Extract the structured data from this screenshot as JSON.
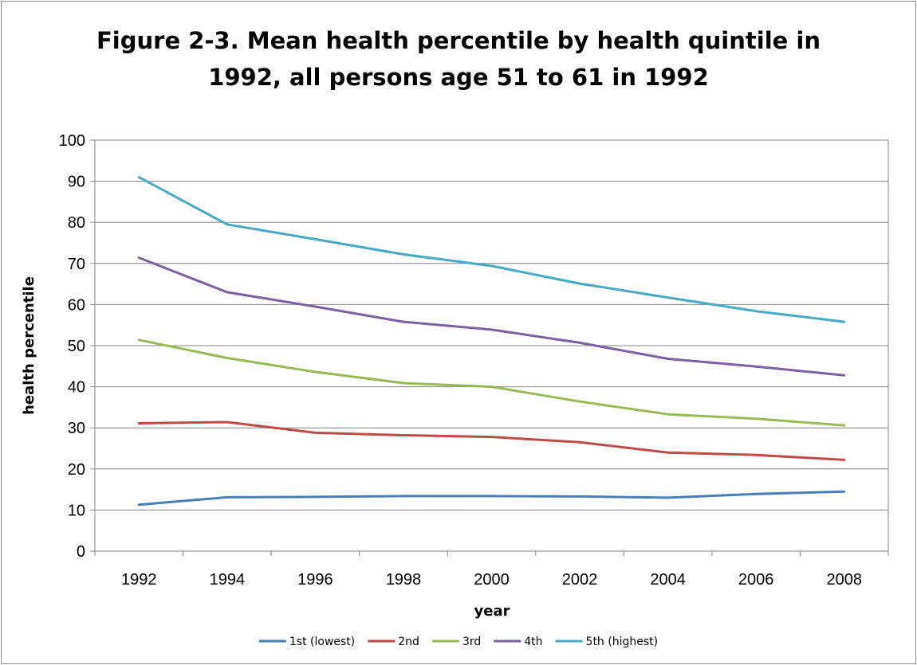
{
  "chart_data": {
    "type": "line",
    "title_line1": "Figure 2-3.  Mean health percentile by health quintile in",
    "title_line2": "1992, all persons age 51 to 61 in 1992",
    "xlabel": "year",
    "ylabel": "health percentile",
    "ylim": [
      0,
      100
    ],
    "yticks": [
      "0",
      "10",
      "20",
      "30",
      "40",
      "50",
      "60",
      "70",
      "80",
      "90",
      "100"
    ],
    "categories": [
      "1992",
      "1994",
      "1996",
      "1998",
      "2000",
      "2002",
      "2004",
      "2006",
      "2008"
    ],
    "grid": true,
    "legend_position": "bottom",
    "series": [
      {
        "name": "1st (lowest)",
        "color": "#4a7ebb",
        "values": [
          11.3,
          13.1,
          13.2,
          13.4,
          13.4,
          13.3,
          13.0,
          13.9,
          14.5
        ]
      },
      {
        "name": "2nd",
        "color": "#be4b48",
        "values": [
          31.1,
          31.4,
          28.8,
          28.2,
          27.8,
          26.5,
          24.0,
          23.4,
          22.2
        ]
      },
      {
        "name": "3rd",
        "color": "#98b954",
        "values": [
          51.4,
          47.0,
          43.6,
          40.9,
          40.0,
          36.4,
          33.3,
          32.2,
          30.6
        ]
      },
      {
        "name": "4th",
        "color": "#7d60a0",
        "values": [
          71.4,
          63.0,
          59.5,
          55.8,
          53.9,
          50.7,
          46.8,
          44.9,
          42.8
        ]
      },
      {
        "name": "5th (highest)",
        "color": "#46aac5",
        "values": [
          91.0,
          79.5,
          75.9,
          72.2,
          69.4,
          65.1,
          61.7,
          58.4,
          55.8
        ]
      }
    ]
  }
}
